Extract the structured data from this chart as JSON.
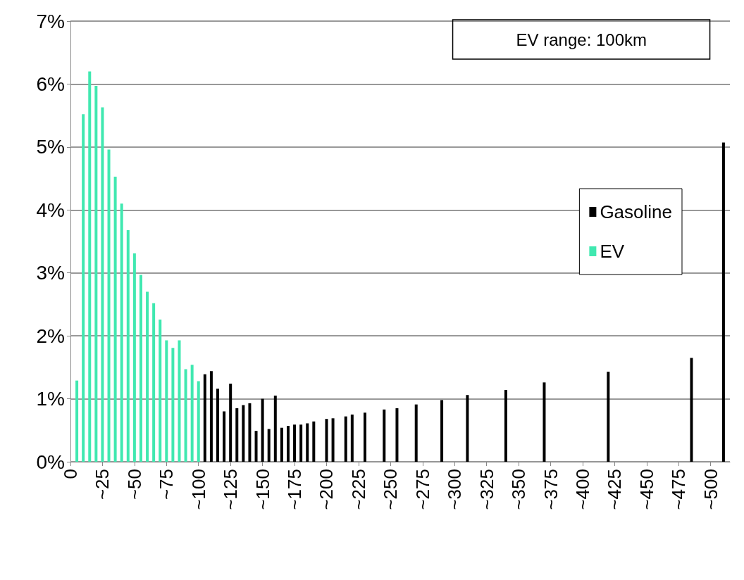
{
  "chart_data": {
    "type": "bar",
    "annotations": [
      "EV range: 100km"
    ],
    "series": [
      {
        "name": "Gasoline",
        "color": "#000000",
        "x": [
          105,
          110,
          115,
          120,
          125,
          130,
          135,
          140,
          145,
          150,
          155,
          160,
          165,
          170,
          175,
          180,
          185,
          190,
          200,
          205,
          215,
          220,
          230,
          245,
          255,
          270,
          290,
          310,
          340,
          370,
          420,
          485,
          510
        ],
        "values": [
          1.39,
          1.44,
          1.16,
          0.8,
          1.24,
          0.85,
          0.9,
          0.93,
          0.49,
          1.0,
          0.52,
          1.05,
          0.54,
          0.57,
          0.59,
          0.59,
          0.61,
          0.64,
          0.68,
          0.69,
          0.72,
          0.75,
          0.78,
          0.83,
          0.85,
          0.91,
          0.98,
          1.06,
          1.14,
          1.26,
          1.43,
          1.65,
          5.07
        ]
      },
      {
        "name": "EV",
        "color": "#40e8b0",
        "x": [
          5,
          10,
          15,
          20,
          25,
          30,
          35,
          40,
          45,
          50,
          55,
          60,
          65,
          70,
          75,
          80,
          85,
          90,
          95,
          100
        ],
        "values": [
          1.29,
          5.52,
          6.2,
          5.97,
          5.63,
          4.96,
          4.53,
          4.1,
          3.68,
          3.31,
          2.97,
          2.7,
          2.52,
          2.26,
          1.93,
          1.81,
          1.93,
          1.47,
          1.54,
          1.28
        ]
      }
    ],
    "xlim": [
      0,
      515
    ],
    "xticks": [
      0,
      {
        "value": 25,
        "label": "~25"
      },
      {
        "value": 50,
        "label": "~50"
      },
      {
        "value": 75,
        "label": "~75"
      },
      {
        "value": 100,
        "label": "~100"
      },
      {
        "value": 125,
        "label": "~125"
      },
      {
        "value": 150,
        "label": "~150"
      },
      {
        "value": 175,
        "label": "~175"
      },
      {
        "value": 200,
        "label": "~200"
      },
      {
        "value": 225,
        "label": "~225"
      },
      {
        "value": 250,
        "label": "~250"
      },
      {
        "value": 275,
        "label": "~275"
      },
      {
        "value": 300,
        "label": "~300"
      },
      {
        "value": 325,
        "label": "~325"
      },
      {
        "value": 350,
        "label": "~350"
      },
      {
        "value": 375,
        "label": "~375"
      },
      {
        "value": 400,
        "label": "~400"
      },
      {
        "value": 425,
        "label": "~425"
      },
      {
        "value": 450,
        "label": "~450"
      },
      {
        "value": 475,
        "label": "~475"
      },
      {
        "value": 500,
        "label": "~500"
      }
    ],
    "ylim": [
      0,
      7
    ],
    "yticks": [
      {
        "value": 0,
        "label": "0%"
      },
      {
        "value": 1,
        "label": "1%"
      },
      {
        "value": 2,
        "label": "2%"
      },
      {
        "value": 3,
        "label": "3%"
      },
      {
        "value": 4,
        "label": "4%"
      },
      {
        "value": 5,
        "label": "5%"
      },
      {
        "value": 6,
        "label": "6%"
      },
      {
        "value": 7,
        "label": "7%"
      }
    ],
    "grid": "y",
    "legend": "right"
  }
}
